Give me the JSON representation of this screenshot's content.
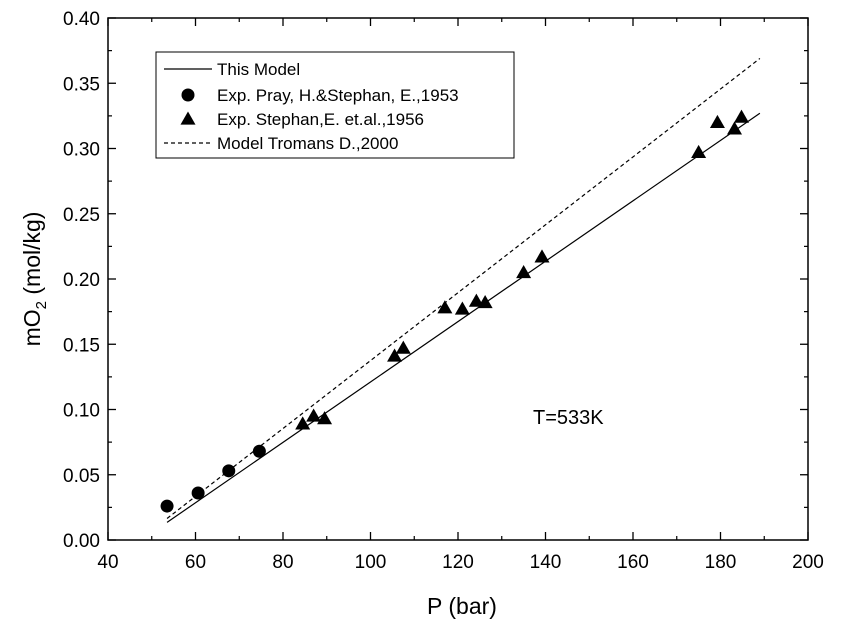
{
  "chart_data": {
    "type": "scatter",
    "xlabel": "P (bar)",
    "ylabel_main": "mO",
    "ylabel_sub": "2",
    "ylabel_unit": " (mol/kg)",
    "xlim": [
      40,
      200
    ],
    "ylim": [
      0,
      0.4
    ],
    "x_ticks": [
      "40",
      "60",
      "80",
      "100",
      "120",
      "140",
      "160",
      "180",
      "200"
    ],
    "y_ticks": [
      "0.00",
      "0.05",
      "0.10",
      "0.15",
      "0.20",
      "0.25",
      "0.30",
      "0.35",
      "0.40"
    ],
    "grid": false,
    "legend_position": "top-left",
    "annotation": "T=533K",
    "series": [
      {
        "name": "This Model",
        "style": "solid-line",
        "x": [
          53.5,
          189
        ],
        "y": [
          0.0135,
          0.327
        ]
      },
      {
        "name": "Exp. Pray, H.&Stephan, E.,1953",
        "style": "circle",
        "x": [
          53.5,
          60.6,
          67.6,
          74.6
        ],
        "y": [
          0.026,
          0.036,
          0.053,
          0.068
        ]
      },
      {
        "name": "Exp. Stephan,E. et.al.,1956",
        "style": "triangle",
        "x": [
          84.5,
          87,
          89.5,
          105.5,
          107.5,
          117,
          121,
          124.2,
          126.2,
          135,
          139.2,
          175,
          179.3,
          183.2,
          184.8
        ],
        "y": [
          0.089,
          0.095,
          0.093,
          0.141,
          0.147,
          0.178,
          0.177,
          0.183,
          0.182,
          0.205,
          0.217,
          0.297,
          0.32,
          0.315,
          0.324
        ]
      },
      {
        "name": "Model Tromans D.,2000",
        "style": "dashed-line",
        "x": [
          53.5,
          189
        ],
        "y": [
          0.0165,
          0.369
        ]
      }
    ]
  }
}
